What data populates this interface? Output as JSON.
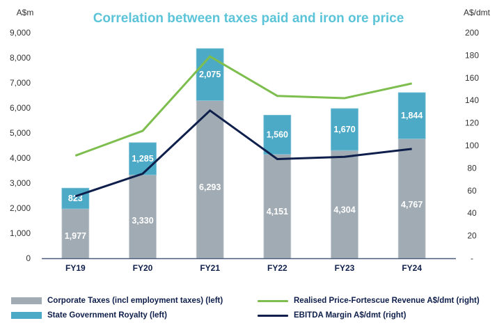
{
  "chart_data": {
    "type": "bar",
    "subtype": "stacked-bar-with-dual-axis-lines",
    "title": "Correlation between taxes paid and iron ore price",
    "categories": [
      "FY19",
      "FY20",
      "FY21",
      "FY22",
      "FY23",
      "FY24"
    ],
    "left_axis": {
      "label": "A$m",
      "range": [
        0,
        9000
      ],
      "ticks": [
        "0",
        "1,000",
        "2,000",
        "3,000",
        "4,000",
        "5,000",
        "6,000",
        "7,000",
        "8,000",
        "9,000"
      ],
      "tick_values": [
        0,
        1000,
        2000,
        3000,
        4000,
        5000,
        6000,
        7000,
        8000,
        9000
      ]
    },
    "right_axis": {
      "label": "A$/dmt",
      "range": [
        0,
        200
      ],
      "ticks": [
        "-",
        "20",
        "40",
        "60",
        "80",
        "100",
        "120",
        "140",
        "160",
        "180",
        "200"
      ],
      "tick_values": [
        0,
        20,
        40,
        60,
        80,
        100,
        120,
        140,
        160,
        180,
        200
      ]
    },
    "bar_series": [
      {
        "name": "Corporate Taxes (incl employment taxes) (left)",
        "color": "#A1ABB3",
        "values": [
          1977,
          3330,
          6293,
          4151,
          4304,
          4767
        ],
        "labels": [
          "1,977",
          "3,330",
          "6,293",
          "4,151",
          "4,304",
          "4,767"
        ]
      },
      {
        "name": "State Government Royalty (left)",
        "color": "#4DAAC6",
        "values": [
          823,
          1285,
          2075,
          1560,
          1670,
          1844
        ],
        "labels": [
          "823",
          "1,285",
          "2,075",
          "1,560",
          "1,670",
          "1,844"
        ]
      }
    ],
    "line_series": [
      {
        "name": "Realised Price-Fortescue Revenue A$/dmt (right)",
        "color": "#7DBE4E",
        "axis": "right",
        "values": [
          91,
          113,
          179,
          144,
          142,
          155
        ]
      },
      {
        "name": "EBITDA Margin A$/dmt (right)",
        "color": "#0F1F4B",
        "axis": "right",
        "values": [
          55,
          75,
          131,
          88,
          90,
          97
        ]
      }
    ],
    "grid": false,
    "legend_position": "bottom"
  },
  "legend": {
    "items": [
      {
        "label": "Corporate Taxes (incl employment taxes) (left)",
        "kind": "box",
        "color": "#A1ABB3"
      },
      {
        "label": "State Government Royalty (left)",
        "kind": "box",
        "color": "#4DAAC6"
      },
      {
        "label": "Realised Price-Fortescue Revenue A$/dmt (right)",
        "kind": "line",
        "color": "#7DBE4E"
      },
      {
        "label": "EBITDA Margin A$/dmt (right)",
        "kind": "line",
        "color": "#0F1F4B"
      }
    ]
  },
  "colors": {
    "title": "#5BC4D8",
    "axis_line": "#4A5A7A",
    "category_text": "#0F1F4B"
  }
}
